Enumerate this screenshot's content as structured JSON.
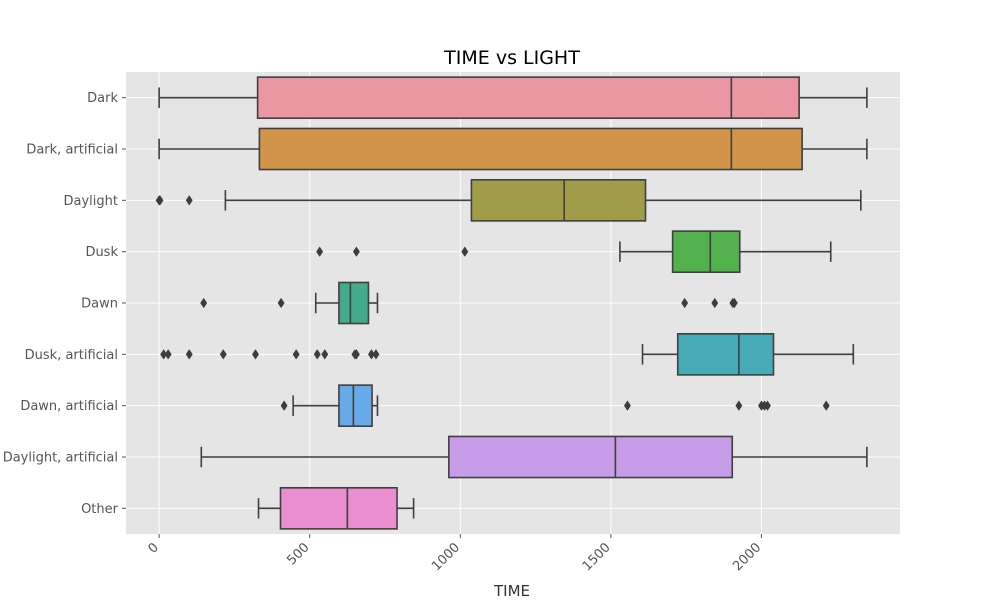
{
  "chart_data": {
    "type": "box",
    "orientation": "horizontal",
    "title": "TIME vs LIGHT",
    "xlabel": "TIME",
    "ylabel": "",
    "xlim": [
      -110,
      2460
    ],
    "xticks": [
      0,
      500,
      1000,
      1500,
      2000
    ],
    "xtick_labels": [
      "0",
      "500",
      "1000",
      "1500",
      "2000"
    ],
    "grid": true,
    "background": "#e5e5e5",
    "grid_color": "#ffffff",
    "box_edge_color": "#3f3f3f",
    "categories": [
      "Dark",
      "Dark, artificial",
      "Daylight",
      "Dusk",
      "Dawn",
      "Dusk, artificial",
      "Dawn, artificial",
      "Daylight, artificial",
      "Other"
    ],
    "series": [
      {
        "category": "Dark",
        "color": "#ea96a3",
        "whisker_low": 0,
        "q1": 327,
        "median": 1900,
        "q3": 2125,
        "whisker_high": 2350,
        "outliers": []
      },
      {
        "category": "Dark, artificial",
        "color": "#d29448",
        "whisker_low": 0,
        "q1": 333,
        "median": 1900,
        "q3": 2135,
        "whisker_high": 2350,
        "outliers": []
      },
      {
        "category": "Daylight",
        "color": "#a19c4a",
        "whisker_low": 220,
        "q1": 1037,
        "median": 1345,
        "q3": 1615,
        "whisker_high": 2330,
        "outliers": [
          0,
          3,
          100
        ]
      },
      {
        "category": "Dusk",
        "color": "#53b14d",
        "whisker_low": 1530,
        "q1": 1705,
        "median": 1830,
        "q3": 1928,
        "whisker_high": 2230,
        "outliers": [
          533,
          655,
          1015
        ]
      },
      {
        "category": "Dawn",
        "color": "#44aa8c",
        "whisker_low": 520,
        "q1": 597,
        "median": 635,
        "q3": 695,
        "whisker_high": 725,
        "outliers": [
          148,
          405,
          1745,
          1845,
          1905,
          1910
        ]
      },
      {
        "category": "Dusk, artificial",
        "color": "#47aab7",
        "whisker_low": 1605,
        "q1": 1722,
        "median": 1925,
        "q3": 2040,
        "whisker_high": 2305,
        "outliers": [
          15,
          30,
          100,
          213,
          320,
          455,
          525,
          550,
          650,
          655,
          705,
          720
        ]
      },
      {
        "category": "Dawn, artificial",
        "color": "#68a9e9",
        "whisker_low": 445,
        "q1": 597,
        "median": 645,
        "q3": 707,
        "whisker_high": 725,
        "outliers": [
          415,
          1555,
          1925,
          2000,
          2010,
          2020,
          2215
        ]
      },
      {
        "category": "Daylight, artificial",
        "color": "#c79de9",
        "whisker_low": 140,
        "q1": 962,
        "median": 1515,
        "q3": 1903,
        "whisker_high": 2350,
        "outliers": []
      },
      {
        "category": "Other",
        "color": "#ea8ecf",
        "whisker_low": 330,
        "q1": 403,
        "median": 625,
        "q3": 790,
        "whisker_high": 845,
        "outliers": []
      }
    ]
  }
}
